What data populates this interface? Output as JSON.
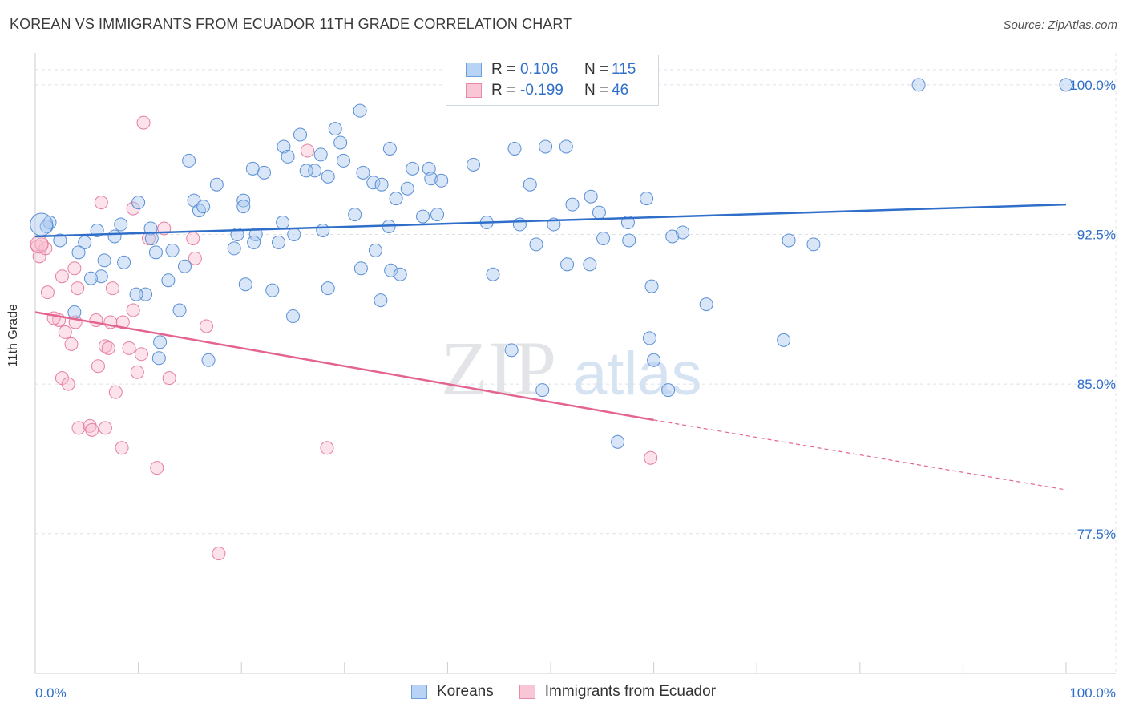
{
  "header": {
    "title": "KOREAN VS IMMIGRANTS FROM ECUADOR 11TH GRADE CORRELATION CHART",
    "source": "Source: ZipAtlas.com"
  },
  "watermark": {
    "zip": "ZIP",
    "atlas": "atlas"
  },
  "legend": {
    "r_label": "R =",
    "n_label": "N =",
    "rows": [
      {
        "r": "0.106",
        "n": "115",
        "swatch_fill": "#b9d3f5",
        "swatch_border": "#6e9fdd"
      },
      {
        "r": "-0.199",
        "n": "46",
        "swatch_fill": "#f9c6d6",
        "swatch_border": "#e88aa8"
      }
    ]
  },
  "bottom_legend": [
    {
      "label": "Koreans",
      "swatch_fill": "#b9d3f5",
      "swatch_border": "#6e9fdd"
    },
    {
      "label": "Immigrants from Ecuador",
      "swatch_fill": "#f9c6d6",
      "swatch_border": "#e88aa8"
    }
  ],
  "colors": {
    "blue_point_fill": "#a9c8f0",
    "blue_point_stroke": "#5b8fd6",
    "blue_line": "#2f6fca",
    "pink_point_fill": "#f8bfd1",
    "pink_point_stroke": "#e57fa1",
    "pink_line": "#e4648f",
    "tick_label": "#2f6fca",
    "grid": "#dde1e6"
  },
  "chart_data": {
    "type": "scatter",
    "title": "KOREAN VS IMMIGRANTS FROM ECUADOR 11TH GRADE CORRELATION CHART",
    "xlabel": "",
    "ylabel": "11th Grade",
    "xlim": [
      0,
      100
    ],
    "ylim": [
      70.5,
      101.6
    ],
    "x_tick_labels": [
      "0.0%",
      "100.0%"
    ],
    "y_ticks": [
      77.5,
      85.0,
      92.5,
      100.0
    ],
    "y_tick_labels": [
      "77.5%",
      "85.0%",
      "92.5%",
      "100.0%"
    ],
    "grid": "horizontal dashed",
    "legend_position": "top-center",
    "series": [
      {
        "name": "Koreans",
        "r": 0.106,
        "n": 115,
        "trend": {
          "x": [
            0,
            100
          ],
          "y": [
            92.4,
            94.0
          ]
        },
        "points": [
          [
            40.9,
            100.0
          ],
          [
            85.7,
            100.0
          ],
          [
            100.0,
            100.0
          ],
          [
            31.5,
            98.7
          ],
          [
            29.1,
            97.8
          ],
          [
            25.7,
            97.5
          ],
          [
            29.6,
            97.1
          ],
          [
            24.1,
            96.9
          ],
          [
            34.4,
            96.8
          ],
          [
            24.5,
            96.4
          ],
          [
            27.7,
            96.5
          ],
          [
            46.5,
            96.8
          ],
          [
            49.5,
            96.9
          ],
          [
            51.5,
            96.9
          ],
          [
            14.9,
            96.2
          ],
          [
            29.9,
            96.2
          ],
          [
            42.5,
            96.0
          ],
          [
            21.1,
            95.8
          ],
          [
            27.1,
            95.7
          ],
          [
            26.3,
            95.7
          ],
          [
            36.6,
            95.8
          ],
          [
            38.2,
            95.8
          ],
          [
            31.8,
            95.6
          ],
          [
            38.4,
            95.3
          ],
          [
            22.2,
            95.6
          ],
          [
            28.4,
            95.4
          ],
          [
            32.8,
            95.1
          ],
          [
            17.6,
            95.0
          ],
          [
            33.6,
            95.0
          ],
          [
            39.4,
            95.2
          ],
          [
            48.0,
            95.0
          ],
          [
            36.1,
            94.8
          ],
          [
            10.0,
            94.1
          ],
          [
            15.4,
            94.2
          ],
          [
            20.2,
            94.2
          ],
          [
            35.0,
            94.3
          ],
          [
            53.9,
            94.4
          ],
          [
            59.3,
            94.3
          ],
          [
            15.9,
            93.7
          ],
          [
            16.3,
            93.9
          ],
          [
            20.2,
            93.9
          ],
          [
            52.1,
            94.0
          ],
          [
            1.4,
            93.1
          ],
          [
            1.1,
            92.9
          ],
          [
            11.2,
            92.8
          ],
          [
            8.3,
            93.0
          ],
          [
            6.0,
            92.7
          ],
          [
            24.0,
            93.1
          ],
          [
            31.0,
            93.5
          ],
          [
            37.6,
            93.4
          ],
          [
            39.0,
            93.5
          ],
          [
            43.8,
            93.1
          ],
          [
            47.0,
            93.0
          ],
          [
            50.3,
            93.0
          ],
          [
            54.7,
            93.6
          ],
          [
            57.5,
            93.1
          ],
          [
            4.8,
            92.1
          ],
          [
            2.4,
            92.2
          ],
          [
            7.7,
            92.4
          ],
          [
            11.3,
            92.3
          ],
          [
            19.6,
            92.5
          ],
          [
            21.4,
            92.5
          ],
          [
            23.6,
            92.1
          ],
          [
            21.2,
            92.1
          ],
          [
            25.1,
            92.5
          ],
          [
            27.9,
            92.7
          ],
          [
            34.3,
            92.9
          ],
          [
            48.6,
            92.0
          ],
          [
            57.6,
            92.2
          ],
          [
            55.1,
            92.3
          ],
          [
            61.8,
            92.4
          ],
          [
            62.8,
            92.6
          ],
          [
            73.1,
            92.2
          ],
          [
            75.5,
            92.0
          ],
          [
            4.2,
            91.6
          ],
          [
            6.7,
            91.2
          ],
          [
            8.6,
            91.1
          ],
          [
            11.7,
            91.6
          ],
          [
            13.3,
            91.7
          ],
          [
            19.3,
            91.8
          ],
          [
            14.5,
            90.9
          ],
          [
            31.6,
            90.8
          ],
          [
            34.5,
            90.7
          ],
          [
            35.4,
            90.5
          ],
          [
            44.4,
            90.5
          ],
          [
            51.6,
            91.0
          ],
          [
            53.8,
            91.0
          ],
          [
            6.4,
            90.4
          ],
          [
            5.4,
            90.3
          ],
          [
            12.9,
            90.2
          ],
          [
            20.4,
            90.0
          ],
          [
            23.0,
            89.7
          ],
          [
            28.4,
            89.8
          ],
          [
            10.7,
            89.5
          ],
          [
            9.8,
            89.5
          ],
          [
            33.5,
            89.2
          ],
          [
            59.8,
            89.9
          ],
          [
            65.1,
            89.0
          ],
          [
            3.8,
            88.6
          ],
          [
            14.0,
            88.7
          ],
          [
            25.0,
            88.4
          ],
          [
            12.1,
            87.1
          ],
          [
            59.6,
            87.3
          ],
          [
            72.6,
            87.2
          ],
          [
            12.0,
            86.3
          ],
          [
            16.8,
            86.2
          ],
          [
            46.2,
            86.7
          ],
          [
            60.0,
            86.2
          ],
          [
            49.2,
            84.7
          ],
          [
            61.4,
            84.7
          ],
          [
            56.5,
            82.1
          ],
          [
            33.0,
            91.7
          ]
        ]
      },
      {
        "name": "Immigrants from Ecuador",
        "r": -0.199,
        "n": 46,
        "trend": {
          "x": [
            0,
            60
          ],
          "y": [
            88.6,
            83.2
          ]
        },
        "trend_dashed": {
          "x": [
            60,
            100
          ],
          "y": [
            83.2,
            79.7
          ]
        },
        "points": [
          [
            10.5,
            98.1
          ],
          [
            26.4,
            96.7
          ],
          [
            6.4,
            94.1
          ],
          [
            9.5,
            93.8
          ],
          [
            12.5,
            92.8
          ],
          [
            11.0,
            92.3
          ],
          [
            15.3,
            92.3
          ],
          [
            0.2,
            91.9
          ],
          [
            0.4,
            91.4
          ],
          [
            15.5,
            91.3
          ],
          [
            3.8,
            90.8
          ],
          [
            2.6,
            90.4
          ],
          [
            7.5,
            89.8
          ],
          [
            4.1,
            89.8
          ],
          [
            1.2,
            89.6
          ],
          [
            9.5,
            88.7
          ],
          [
            2.3,
            88.2
          ],
          [
            1.8,
            88.3
          ],
          [
            7.3,
            88.1
          ],
          [
            5.9,
            88.2
          ],
          [
            8.5,
            88.1
          ],
          [
            16.6,
            87.9
          ],
          [
            2.9,
            87.6
          ],
          [
            3.5,
            87.0
          ],
          [
            6.8,
            86.9
          ],
          [
            7.1,
            86.8
          ],
          [
            9.1,
            86.8
          ],
          [
            10.3,
            86.5
          ],
          [
            6.1,
            85.9
          ],
          [
            9.9,
            85.6
          ],
          [
            13.0,
            85.3
          ],
          [
            2.6,
            85.3
          ],
          [
            3.2,
            85.0
          ],
          [
            7.8,
            84.6
          ],
          [
            4.2,
            82.8
          ],
          [
            5.3,
            82.9
          ],
          [
            5.5,
            82.7
          ],
          [
            6.8,
            82.8
          ],
          [
            8.4,
            81.8
          ],
          [
            28.3,
            81.8
          ],
          [
            11.8,
            80.8
          ],
          [
            59.7,
            81.3
          ],
          [
            17.8,
            76.5
          ],
          [
            1.0,
            91.8
          ],
          [
            0.6,
            92.0
          ],
          [
            3.9,
            88.1
          ]
        ]
      }
    ]
  }
}
